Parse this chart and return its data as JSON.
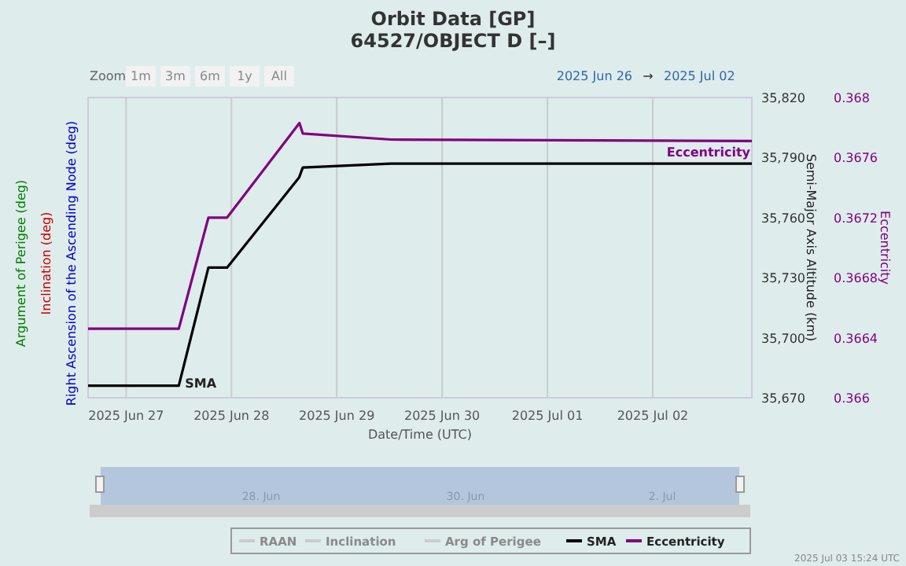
{
  "chart_data": {
    "type": "line",
    "title": "Orbit Data [GP]",
    "subtitle": "64527/OBJECT D [–]",
    "xlabel": "Date/Time (UTC)",
    "ylabel": "Semi-Major Axis Altitude (km)",
    "y2label": "Eccentricity",
    "annotations": [
      "Argument of Perigee (deg)",
      "Inclination (deg)",
      "Right Ascension of the Ascending Node (deg)",
      "Zoom",
      "1m",
      "3m",
      "6m",
      "1y",
      "All",
      "2025 Jun 26",
      "→",
      "2025 Jul 02",
      "28. Jun",
      "30. Jun",
      "2. Jul",
      "2025 Jul 03 15:24 UTC"
    ],
    "xlim": [
      "2025-06-26T15:20",
      "2025-07-02T22:35"
    ],
    "xticks": [
      {
        "value": "2025-06-27T00:00",
        "label": "2025 Jun 27"
      },
      {
        "value": "2025-06-28T00:00",
        "label": "2025 Jun 28"
      },
      {
        "value": "2025-06-29T00:00",
        "label": "2025 Jun 29"
      },
      {
        "value": "2025-06-30T00:00",
        "label": "2025 Jun 30"
      },
      {
        "value": "2025-07-01T00:00",
        "label": "2025 Jul 01"
      },
      {
        "value": "2025-07-02T00:00",
        "label": "2025 Jul 02"
      }
    ],
    "ylim": [
      35670,
      35820
    ],
    "yticks": [
      {
        "value": 35670,
        "label": "35,670"
      },
      {
        "value": 35700,
        "label": "35,700"
      },
      {
        "value": 35730,
        "label": "35,730"
      },
      {
        "value": 35760,
        "label": "35,760"
      },
      {
        "value": 35790,
        "label": "35,790"
      },
      {
        "value": 35820,
        "label": "35,820"
      }
    ],
    "y2lim": [
      0.366,
      0.368
    ],
    "y2ticks": [
      0.366,
      0.3664,
      0.3668,
      0.3672,
      0.3676,
      0.368
    ],
    "grid": "x",
    "legend": "bottom",
    "line_style": "solid",
    "series": [
      {
        "name": "RAAN",
        "color": "#cccccc"
      },
      {
        "name": "Inclination",
        "color": "#cccccc"
      },
      {
        "name": "Arg of Perigee",
        "color": "#cccccc"
      },
      {
        "name": "SMA",
        "color": "#000000",
        "x": [
          "2025-06-26T15:20",
          "2025-06-27T12:00",
          "2025-06-27T18:45",
          "2025-06-27T23:00",
          "2025-06-28T15:25",
          "2025-06-28T16:15",
          "2025-06-29T12:20",
          "2025-07-02T22:35"
        ],
        "values": [
          35676,
          35676,
          35735,
          35735,
          35780,
          35785,
          35787,
          35787
        ]
      },
      {
        "name": "Eccentricity",
        "color": "#800080",
        "axis": "y2",
        "x": [
          "2025-06-26T15:20",
          "2025-06-27T12:00",
          "2025-06-27T18:45",
          "2025-06-27T23:00",
          "2025-06-28T15:30",
          "2025-06-28T16:15",
          "2025-06-29T12:20",
          "2025-07-02T22:35"
        ],
        "values": [
          0.36646,
          0.36646,
          0.3672,
          0.3672,
          0.36783,
          0.36776,
          0.36772,
          0.36771
        ]
      }
    ]
  }
}
